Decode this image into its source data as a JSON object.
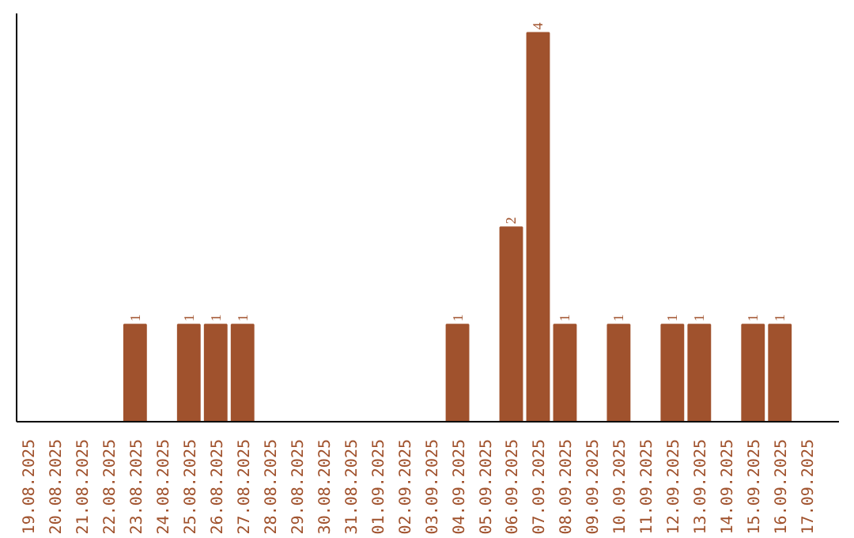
{
  "chart_data": {
    "type": "bar",
    "categories": [
      "19.08.2025",
      "20.08.2025",
      "21.08.2025",
      "22.08.2025",
      "23.08.2025",
      "24.08.2025",
      "25.08.2025",
      "26.08.2025",
      "27.08.2025",
      "28.08.2025",
      "29.08.2025",
      "30.08.2025",
      "31.08.2025",
      "01.09.2025",
      "02.09.2025",
      "03.09.2025",
      "04.09.2025",
      "05.09.2025",
      "06.09.2025",
      "07.09.2025",
      "08.09.2025",
      "09.09.2025",
      "10.09.2025",
      "11.09.2025",
      "12.09.2025",
      "13.09.2025",
      "14.09.2025",
      "15.09.2025",
      "16.09.2025",
      "17.09.2025"
    ],
    "values": [
      0,
      0,
      0,
      0,
      1,
      0,
      1,
      1,
      1,
      0,
      0,
      0,
      0,
      0,
      0,
      0,
      1,
      0,
      2,
      4,
      1,
      0,
      1,
      0,
      1,
      1,
      0,
      1,
      1,
      0
    ],
    "value_labels": [
      null,
      null,
      null,
      null,
      "1",
      null,
      "1",
      "1",
      "1",
      null,
      null,
      null,
      null,
      null,
      null,
      null,
      "1",
      null,
      "2",
      "4",
      "1",
      null,
      "1",
      null,
      "1",
      "1",
      null,
      "1",
      "1",
      null
    ],
    "color": "#a0522d",
    "ylim": [
      0,
      4.2
    ],
    "grid": false,
    "tick_labels": "x"
  }
}
